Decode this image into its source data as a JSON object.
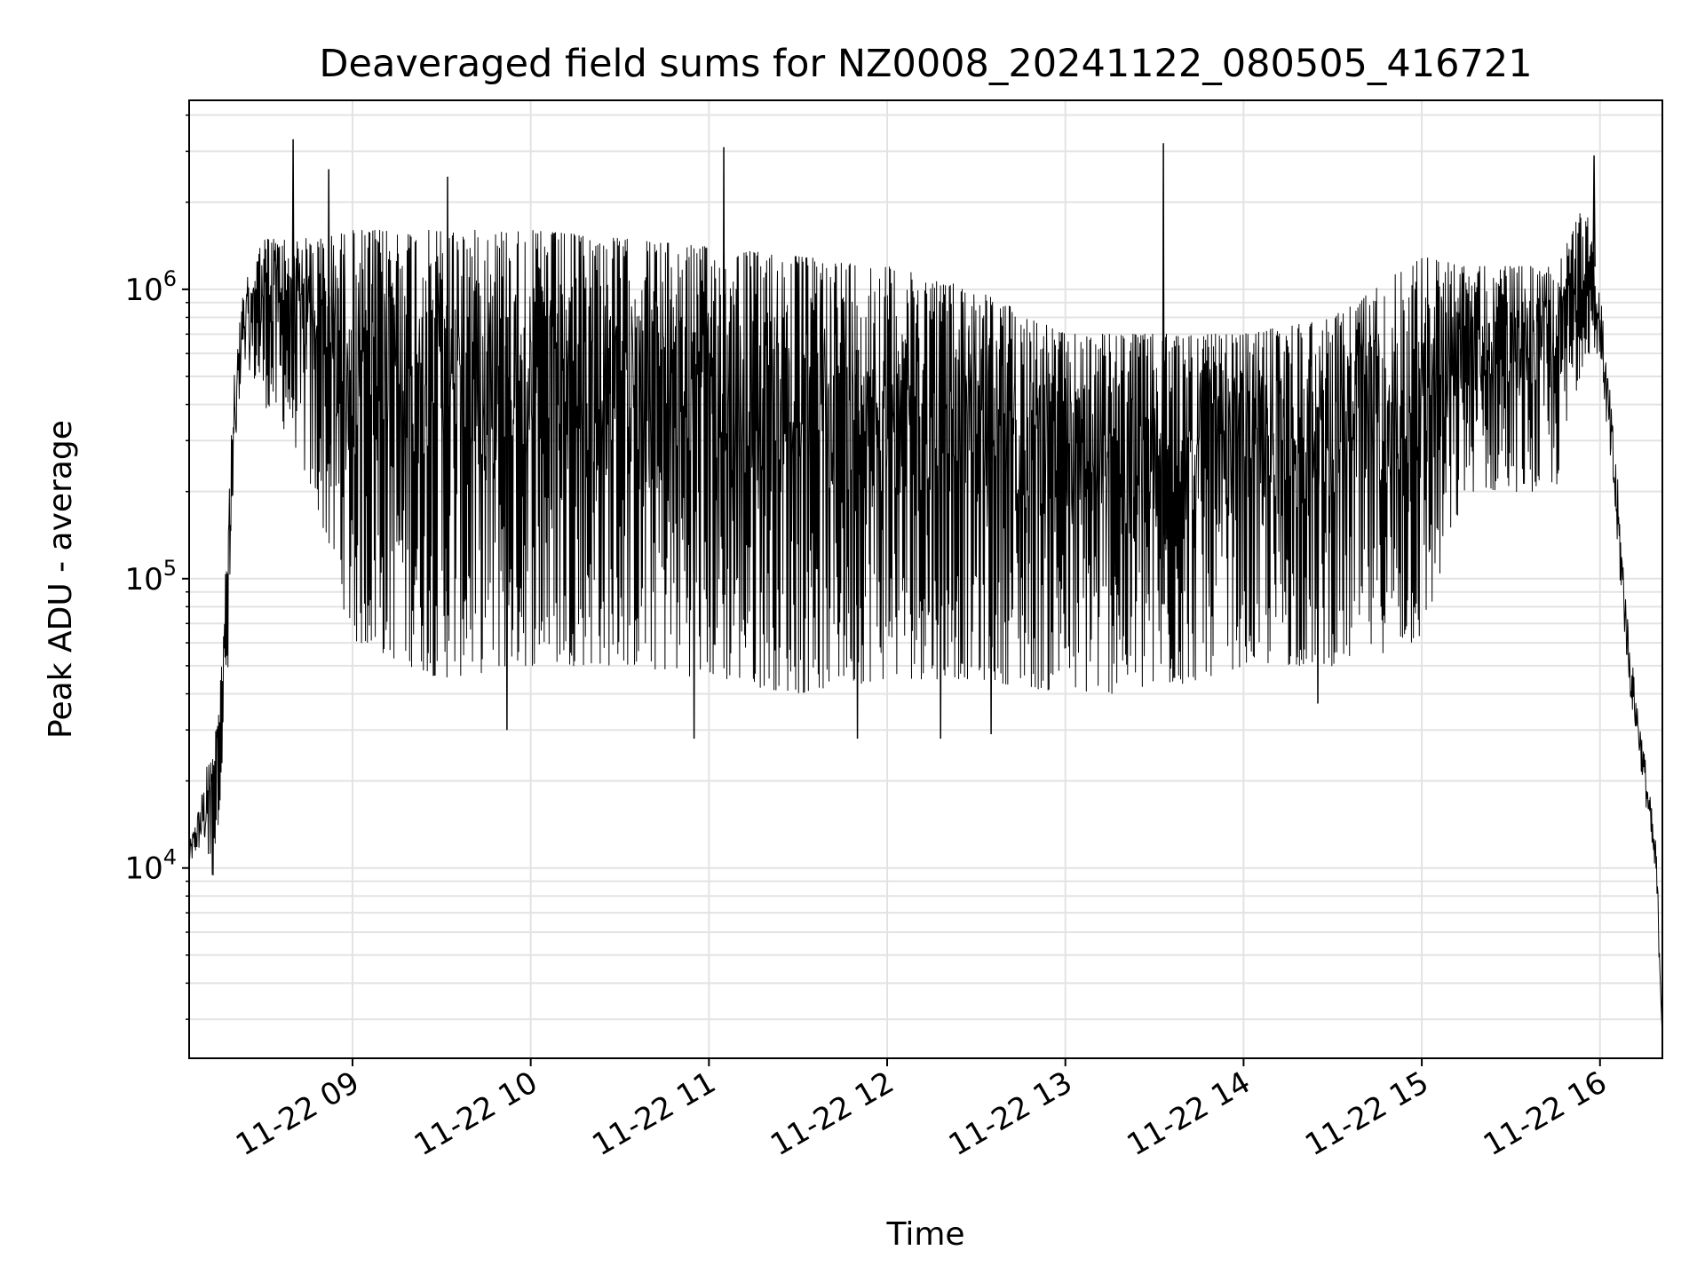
{
  "chart_data": {
    "type": "line",
    "title": "Deaveraged field sums for NZ0008_20241122_080505_416721",
    "xlabel": "Time",
    "ylabel": "Peak ADU - average",
    "yscale": "log",
    "xlim": [
      "11-22 08:05",
      "11-22 16:21"
    ],
    "ylim": [
      2200,
      4500000
    ],
    "x_ticks": [
      "11-22 09",
      "11-22 10",
      "11-22 11",
      "11-22 12",
      "11-22 13",
      "11-22 14",
      "11-22 15",
      "11-22 16"
    ],
    "y_ticks": [
      {
        "base": "10",
        "exp": "4",
        "value": 10000
      },
      {
        "base": "10",
        "exp": "5",
        "value": 100000
      },
      {
        "base": "10",
        "exp": "6",
        "value": 1000000
      }
    ],
    "grid": true,
    "line_color": "#000000",
    "series": [
      {
        "name": "",
        "envelope": [
          {
            "time": "11-22 08:05",
            "low": 10000,
            "high": 12000
          },
          {
            "time": "11-22 08:10",
            "low": 12000,
            "high": 20000
          },
          {
            "time": "11-22 08:13",
            "low": 9000,
            "high": 30000
          },
          {
            "time": "11-22 08:15",
            "low": 15000,
            "high": 35000
          },
          {
            "time": "11-22 08:18",
            "low": 40000,
            "high": 150000
          },
          {
            "time": "11-22 08:20",
            "low": 200000,
            "high": 500000
          },
          {
            "time": "11-22 08:23",
            "low": 600000,
            "high": 1000000
          },
          {
            "time": "11-22 08:30",
            "low": 400000,
            "high": 1500000
          },
          {
            "time": "11-22 08:40",
            "low": 300000,
            "high": 1500000
          },
          {
            "time": "11-22 08:50",
            "low": 150000,
            "high": 1500000
          },
          {
            "time": "11-22 09:00",
            "low": 60000,
            "high": 1600000
          },
          {
            "time": "11-22 09:30",
            "low": 45000,
            "high": 1600000
          },
          {
            "time": "11-22 10:00",
            "low": 50000,
            "high": 1600000
          },
          {
            "time": "11-22 10:30",
            "low": 50000,
            "high": 1500000
          },
          {
            "time": "11-22 11:00",
            "low": 45000,
            "high": 1400000
          },
          {
            "time": "11-22 11:30",
            "low": 40000,
            "high": 1300000
          },
          {
            "time": "11-22 12:00",
            "low": 45000,
            "high": 1200000
          },
          {
            "time": "11-22 12:30",
            "low": 45000,
            "high": 1000000
          },
          {
            "time": "11-22 13:00",
            "low": 40000,
            "high": 700000
          },
          {
            "time": "11-22 13:30",
            "low": 40000,
            "high": 700000
          },
          {
            "time": "11-22 14:00",
            "low": 50000,
            "high": 700000
          },
          {
            "time": "11-22 14:30",
            "low": 50000,
            "high": 800000
          },
          {
            "time": "11-22 15:00",
            "low": 60000,
            "high": 1300000
          },
          {
            "time": "11-22 15:15",
            "low": 200000,
            "high": 1200000
          },
          {
            "time": "11-22 15:45",
            "low": 200000,
            "high": 1200000
          },
          {
            "time": "11-22 15:55",
            "low": 600000,
            "high": 2000000
          },
          {
            "time": "11-22 16:00",
            "low": 600000,
            "high": 1000000
          },
          {
            "time": "11-22 16:05",
            "low": 150000,
            "high": 300000
          },
          {
            "time": "11-22 16:10",
            "low": 40000,
            "high": 60000
          },
          {
            "time": "11-22 16:15",
            "low": 18000,
            "high": 25000
          },
          {
            "time": "11-22 16:19",
            "low": 8000,
            "high": 12000
          },
          {
            "time": "11-22 16:21",
            "low": 2500,
            "high": 3000
          }
        ],
        "spikes": [
          {
            "time": "11-22 08:40",
            "value": 3300000
          },
          {
            "time": "11-22 08:52",
            "value": 2600000
          },
          {
            "time": "11-22 09:32",
            "value": 2450000
          },
          {
            "time": "11-22 11:05",
            "value": 3100000
          },
          {
            "time": "11-22 13:33",
            "value": 3200000
          },
          {
            "time": "11-22 15:58",
            "value": 2900000
          }
        ],
        "dips": [
          {
            "time": "11-22 09:52",
            "value": 30000
          },
          {
            "time": "11-22 10:55",
            "value": 28000
          },
          {
            "time": "11-22 11:50",
            "value": 28000
          },
          {
            "time": "11-22 12:18",
            "value": 28000
          },
          {
            "time": "11-22 12:35",
            "value": 29000
          },
          {
            "time": "11-22 14:25",
            "value": 37000
          }
        ]
      }
    ]
  }
}
